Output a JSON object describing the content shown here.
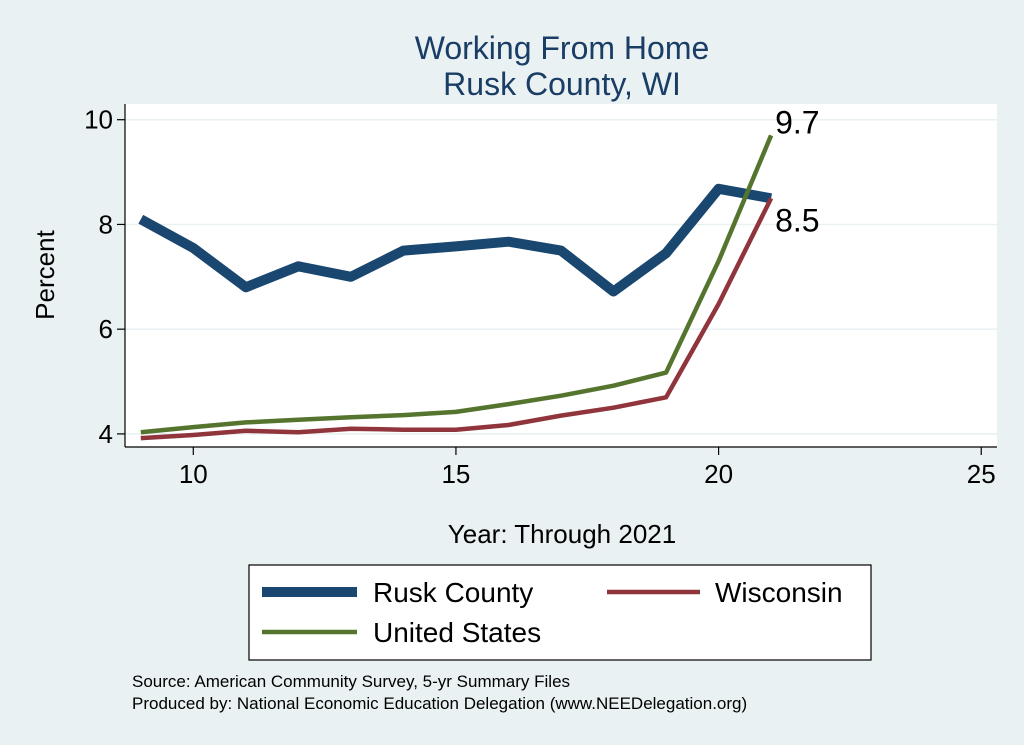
{
  "chart_data": {
    "type": "line",
    "title": "Working From Home",
    "subtitle": "Rusk County, WI",
    "xlabel": "Year: Through 2021",
    "ylabel": "Percent",
    "xlim": [
      8.7,
      25.3
    ],
    "ylim": [
      3.75,
      10.3
    ],
    "xticks": [
      10,
      15,
      20,
      25
    ],
    "yticks": [
      4,
      6,
      8,
      10
    ],
    "grid": true,
    "legend_position": "bottom",
    "x": [
      9,
      10,
      11,
      12,
      13,
      14,
      15,
      16,
      17,
      18,
      19,
      20,
      21
    ],
    "series": [
      {
        "name": "Rusk County",
        "color": "#1a476f",
        "values": [
          8.1,
          7.55,
          6.8,
          7.2,
          7.0,
          7.5,
          7.58,
          7.67,
          7.5,
          6.72,
          7.45,
          8.68,
          8.5
        ]
      },
      {
        "name": "Wisconsin",
        "color": "#90353b",
        "values": [
          3.92,
          3.98,
          4.06,
          4.03,
          4.1,
          4.08,
          4.08,
          4.17,
          4.35,
          4.5,
          4.7,
          6.48,
          8.5
        ]
      },
      {
        "name": "United States",
        "color": "#55752f",
        "values": [
          4.03,
          4.13,
          4.22,
          4.27,
          4.32,
          4.36,
          4.42,
          4.57,
          4.73,
          4.92,
          5.17,
          7.3,
          9.7
        ]
      }
    ],
    "end_labels": [
      {
        "text": "9.7",
        "x": 21,
        "y": 9.7
      },
      {
        "text": "8.5",
        "x": 21,
        "y": 8.5
      }
    ]
  },
  "source_lines": [
    "Source: American Community Survey, 5-yr Summary Files",
    "Produced by: National Economic Education Delegation (www.NEEDelegation.org)"
  ]
}
